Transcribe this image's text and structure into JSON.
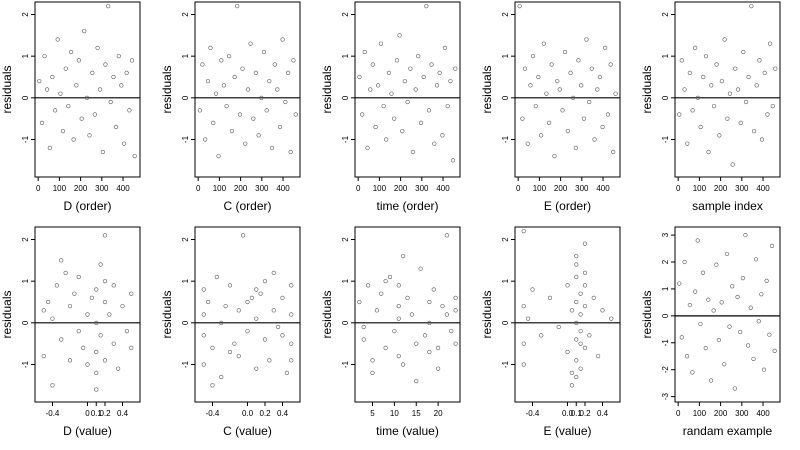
{
  "figure": {
    "background": "#ffffff",
    "point_color": "#555555",
    "line_color": "#000000"
  },
  "chart_data": [
    {
      "type": "scatter",
      "xlabel": "D (order)",
      "ylabel": "residuals",
      "xlim": [
        -15,
        480
      ],
      "ylim": [
        -1.9,
        2.3
      ],
      "xticks": [
        {
          "v": 0,
          "l": "0"
        },
        {
          "v": 100,
          "l": "100"
        },
        {
          "v": 200,
          "l": "200"
        },
        {
          "v": 300,
          "l": "300"
        },
        {
          "v": 400,
          "l": "400"
        }
      ],
      "yticks": [
        {
          "v": -1,
          "l": "-1"
        },
        {
          "v": 0,
          "l": "0"
        },
        {
          "v": 1,
          "l": "1"
        },
        {
          "v": 2,
          "l": "2"
        }
      ],
      "hline": 0,
      "x": [
        5,
        18,
        30,
        42,
        55,
        67,
        80,
        92,
        105,
        117,
        130,
        142,
        155,
        167,
        180,
        192,
        205,
        217,
        230,
        242,
        255,
        267,
        280,
        292,
        305,
        317,
        330,
        342,
        355,
        367,
        380,
        392,
        405,
        417,
        430,
        442,
        455
      ],
      "y": [
        0.4,
        -0.6,
        1.0,
        0.2,
        -1.2,
        0.5,
        -0.3,
        1.4,
        0.1,
        -0.8,
        0.7,
        -0.2,
        1.1,
        -1.0,
        0.3,
        0.9,
        -0.5,
        1.6,
        0.0,
        -0.9,
        0.6,
        -0.4,
        1.2,
        0.2,
        -1.3,
        0.8,
        2.2,
        -0.1,
        0.5,
        -0.7,
        1.0,
        0.3,
        -1.1,
        0.6,
        -0.3,
        0.9,
        -1.4
      ]
    },
    {
      "type": "scatter",
      "xlabel": "C (order)",
      "ylabel": "residuals",
      "xlim": [
        -15,
        480
      ],
      "ylim": [
        -1.9,
        2.3
      ],
      "xticks": [
        {
          "v": 0,
          "l": "0"
        },
        {
          "v": 100,
          "l": "100"
        },
        {
          "v": 200,
          "l": "200"
        },
        {
          "v": 300,
          "l": "300"
        },
        {
          "v": 400,
          "l": "400"
        }
      ],
      "yticks": [
        {
          "v": -1,
          "l": "-1"
        },
        {
          "v": 0,
          "l": "0"
        },
        {
          "v": 1,
          "l": "1"
        },
        {
          "v": 2,
          "l": "2"
        }
      ],
      "hline": 0,
      "x": [
        8,
        20,
        33,
        46,
        58,
        71,
        84,
        96,
        109,
        121,
        134,
        146,
        159,
        172,
        184,
        197,
        209,
        222,
        235,
        247,
        260,
        272,
        285,
        298,
        310,
        323,
        335,
        348,
        361,
        373,
        386,
        398,
        411,
        424,
        436,
        449,
        460
      ],
      "y": [
        -0.3,
        0.8,
        -1.0,
        0.4,
        1.2,
        -0.6,
        0.1,
        -1.4,
        0.9,
        0.3,
        -0.2,
        1.0,
        -0.8,
        0.5,
        2.2,
        -0.4,
        0.7,
        -1.1,
        0.2,
        1.3,
        -0.5,
        0.6,
        -0.9,
        0.0,
        1.1,
        -0.3,
        0.4,
        -1.2,
        0.8,
        0.2,
        -0.7,
        1.4,
        -0.1,
        0.6,
        -1.3,
        0.9,
        -0.4
      ]
    },
    {
      "type": "scatter",
      "xlabel": "time (order)",
      "ylabel": "residuals",
      "xlim": [
        -15,
        480
      ],
      "ylim": [
        -1.9,
        2.3
      ],
      "xticks": [
        {
          "v": 0,
          "l": "0"
        },
        {
          "v": 100,
          "l": "100"
        },
        {
          "v": 200,
          "l": "200"
        },
        {
          "v": 300,
          "l": "300"
        },
        {
          "v": 400,
          "l": "400"
        }
      ],
      "yticks": [
        {
          "v": -1,
          "l": "-1"
        },
        {
          "v": 0,
          "l": "0"
        },
        {
          "v": 1,
          "l": "1"
        },
        {
          "v": 2,
          "l": "2"
        }
      ],
      "hline": 0,
      "x": [
        6,
        19,
        31,
        44,
        57,
        69,
        82,
        94,
        107,
        120,
        132,
        145,
        157,
        170,
        183,
        195,
        208,
        220,
        233,
        246,
        258,
        271,
        283,
        296,
        309,
        321,
        334,
        346,
        359,
        372,
        384,
        397,
        409,
        422,
        435,
        447,
        458
      ],
      "y": [
        0.5,
        -0.4,
        1.1,
        -1.2,
        0.2,
        0.8,
        -0.7,
        0.3,
        1.3,
        -0.2,
        -1.0,
        0.6,
        0.1,
        -0.5,
        0.9,
        1.5,
        -0.8,
        0.4,
        -0.1,
        0.7,
        -1.3,
        0.2,
        1.0,
        -0.6,
        0.5,
        2.2,
        -0.3,
        0.8,
        -1.1,
        0.3,
        0.6,
        -0.9,
        1.2,
        -0.2,
        0.4,
        -1.5,
        0.7
      ]
    },
    {
      "type": "scatter",
      "xlabel": "E (order)",
      "ylabel": "residuals",
      "xlim": [
        -15,
        480
      ],
      "ylim": [
        -1.9,
        2.3
      ],
      "xticks": [
        {
          "v": 0,
          "l": "0"
        },
        {
          "v": 100,
          "l": "100"
        },
        {
          "v": 200,
          "l": "200"
        },
        {
          "v": 300,
          "l": "300"
        },
        {
          "v": 400,
          "l": "400"
        }
      ],
      "yticks": [
        {
          "v": -1,
          "l": "-1"
        },
        {
          "v": 0,
          "l": "0"
        },
        {
          "v": 1,
          "l": "1"
        },
        {
          "v": 2,
          "l": "2"
        }
      ],
      "hline": 0,
      "x": [
        7,
        20,
        32,
        45,
        58,
        70,
        83,
        95,
        108,
        121,
        133,
        146,
        158,
        171,
        184,
        196,
        209,
        221,
        234,
        247,
        259,
        272,
        284,
        297,
        310,
        322,
        335,
        347,
        360,
        373,
        385,
        398,
        410,
        423,
        436,
        448,
        459
      ],
      "y": [
        2.2,
        -0.5,
        0.7,
        -1.1,
        0.3,
        1.0,
        -0.2,
        0.5,
        -0.9,
        1.3,
        0.1,
        -0.6,
        0.8,
        -1.4,
        0.4,
        0.2,
        -0.3,
        1.1,
        -0.8,
        0.6,
        0.0,
        -1.2,
        0.9,
        0.3,
        -0.5,
        1.4,
        -0.1,
        0.7,
        -1.0,
        0.2,
        0.5,
        -0.7,
        1.2,
        -0.4,
        0.8,
        -1.3,
        0.1
      ]
    },
    {
      "type": "scatter",
      "xlabel": "sample index",
      "ylabel": "residuals",
      "xlim": [
        -15,
        480
      ],
      "ylim": [
        -1.9,
        2.3
      ],
      "xticks": [
        {
          "v": 0,
          "l": "0"
        },
        {
          "v": 100,
          "l": "100"
        },
        {
          "v": 200,
          "l": "200"
        },
        {
          "v": 300,
          "l": "300"
        },
        {
          "v": 400,
          "l": "400"
        }
      ],
      "yticks": [
        {
          "v": -1,
          "l": "-1"
        },
        {
          "v": 0,
          "l": "0"
        },
        {
          "v": 1,
          "l": "1"
        },
        {
          "v": 2,
          "l": "2"
        }
      ],
      "hline": 0,
      "x": [
        5,
        17,
        30,
        43,
        55,
        68,
        80,
        93,
        106,
        118,
        131,
        143,
        156,
        169,
        181,
        194,
        206,
        219,
        232,
        244,
        257,
        269,
        282,
        295,
        307,
        320,
        332,
        345,
        358,
        370,
        383,
        395,
        408,
        421,
        433,
        446,
        458
      ],
      "y": [
        -0.4,
        0.9,
        0.2,
        -1.1,
        0.6,
        -0.3,
        1.2,
        0.0,
        -0.7,
        0.5,
        1.0,
        -1.3,
        0.3,
        -0.2,
        0.8,
        -0.9,
        0.4,
        1.4,
        -0.5,
        0.1,
        -1.6,
        0.7,
        0.2,
        -0.6,
        1.1,
        -0.1,
        0.5,
        2.2,
        -0.8,
        0.3,
        0.9,
        -1.0,
        0.6,
        -0.4,
        1.3,
        -0.2,
        0.7
      ]
    },
    {
      "type": "scatter",
      "xlabel": "D (value)",
      "ylabel": "residuals",
      "xlim": [
        -0.6,
        0.6
      ],
      "ylim": [
        -1.9,
        2.3
      ],
      "xticks": [
        {
          "v": -0.4,
          "l": "-0.4"
        },
        {
          "v": 0,
          "l": "0"
        },
        {
          "v": 0.1,
          "l": "0.1"
        },
        {
          "v": 0.2,
          "l": "0.2"
        },
        {
          "v": 0.4,
          "l": "0.4"
        }
      ],
      "yticks": [
        {
          "v": -1,
          "l": "-1"
        },
        {
          "v": 0,
          "l": "0"
        },
        {
          "v": 1,
          "l": "1"
        },
        {
          "v": 2,
          "l": "2"
        }
      ],
      "hline": 0,
      "x": [
        -0.5,
        -0.5,
        -0.45,
        -0.4,
        -0.4,
        -0.35,
        -0.3,
        -0.25,
        -0.2,
        -0.2,
        -0.15,
        -0.1,
        -0.1,
        -0.05,
        0.0,
        0.0,
        0.05,
        0.1,
        0.1,
        0.1,
        0.1,
        0.15,
        0.15,
        0.2,
        0.2,
        0.2,
        0.25,
        0.3,
        0.3,
        0.35,
        0.4,
        0.45,
        0.5,
        0.5,
        -0.3,
        0.1,
        0.2
      ],
      "y": [
        0.3,
        -0.8,
        0.5,
        -1.5,
        0.1,
        0.9,
        -0.4,
        1.2,
        0.4,
        -0.9,
        0.7,
        -0.2,
        1.1,
        -0.6,
        0.2,
        -1.0,
        0.6,
        0.0,
        -0.7,
        0.8,
        -1.2,
        1.4,
        -0.3,
        0.5,
        -0.9,
        2.1,
        0.2,
        -0.5,
        0.9,
        -1.1,
        0.4,
        -0.2,
        0.7,
        -0.6,
        1.5,
        -1.6,
        1.0
      ]
    },
    {
      "type": "scatter",
      "xlabel": "C (value)",
      "ylabel": "residuals",
      "xlim": [
        -0.6,
        0.6
      ],
      "ylim": [
        -1.9,
        2.3
      ],
      "xticks": [
        {
          "v": -0.4,
          "l": "-0.4"
        },
        {
          "v": 0,
          "l": "0.0"
        },
        {
          "v": 0.2,
          "l": "0.2"
        },
        {
          "v": 0.4,
          "l": "0.4"
        }
      ],
      "yticks": [
        {
          "v": -1,
          "l": "-1"
        },
        {
          "v": 0,
          "l": "0"
        },
        {
          "v": 1,
          "l": "1"
        },
        {
          "v": 2,
          "l": "2"
        }
      ],
      "hline": 0,
      "x": [
        -0.5,
        -0.5,
        -0.5,
        -0.5,
        -0.45,
        -0.4,
        -0.35,
        -0.3,
        -0.3,
        -0.25,
        -0.2,
        -0.15,
        -0.1,
        -0.1,
        -0.05,
        0.0,
        0.05,
        0.1,
        0.1,
        0.15,
        0.2,
        0.2,
        0.25,
        0.3,
        0.35,
        0.4,
        0.45,
        0.5,
        0.5,
        0.5,
        0.5,
        -0.2,
        0.0,
        0.3,
        -0.4,
        0.4,
        0.1
      ],
      "y": [
        0.8,
        -0.3,
        0.2,
        -1.0,
        0.5,
        -0.6,
        1.1,
        0.0,
        -1.3,
        0.4,
        0.9,
        -0.5,
        0.3,
        -0.8,
        2.1,
        -0.2,
        0.6,
        -1.1,
        0.1,
        0.7,
        -0.4,
        1.0,
        -0.9,
        0.3,
        -0.1,
        0.6,
        -1.2,
        0.9,
        -0.5,
        0.2,
        -0.9,
        -0.7,
        0.5,
        1.2,
        -1.5,
        -0.3,
        0.8
      ]
    },
    {
      "type": "scatter",
      "xlabel": "time (value)",
      "ylabel": "residuals",
      "xlim": [
        1,
        25
      ],
      "ylim": [
        -1.9,
        2.3
      ],
      "xticks": [
        {
          "v": 5,
          "l": "5"
        },
        {
          "v": 10,
          "l": "10"
        },
        {
          "v": 15,
          "l": "15"
        },
        {
          "v": 20,
          "l": "20"
        }
      ],
      "yticks": [
        {
          "v": -1,
          "l": "-1"
        },
        {
          "v": 0,
          "l": "0"
        },
        {
          "v": 1,
          "l": "1"
        },
        {
          "v": 2,
          "l": "2"
        }
      ],
      "hline": 0,
      "x": [
        2,
        3,
        4,
        5,
        6,
        7,
        8,
        9,
        10,
        11,
        11,
        11,
        11,
        12,
        13,
        14,
        15,
        16,
        17,
        18,
        18,
        18,
        19,
        20,
        21,
        22,
        23,
        24,
        24,
        24,
        5,
        8,
        15,
        12,
        20,
        22,
        3
      ],
      "y": [
        0.5,
        -0.4,
        0.9,
        -1.2,
        0.3,
        0.7,
        -0.6,
        1.1,
        -0.2,
        0.4,
        -0.8,
        0.1,
        0.9,
        -1.0,
        0.6,
        0.2,
        -0.5,
        1.3,
        -0.3,
        0.5,
        -0.7,
        0.0,
        0.8,
        -1.1,
        0.4,
        2.1,
        -0.2,
        0.6,
        -0.5,
        0.3,
        -0.9,
        1.0,
        -1.4,
        1.6,
        -0.6,
        0.2,
        -0.1
      ]
    },
    {
      "type": "scatter",
      "xlabel": "E (value)",
      "ylabel": "residuals",
      "xlim": [
        -0.6,
        0.6
      ],
      "ylim": [
        -1.9,
        2.3
      ],
      "xticks": [
        {
          "v": -0.4,
          "l": "-0.4"
        },
        {
          "v": 0,
          "l": "0.0"
        },
        {
          "v": 0.1,
          "l": "0.1"
        },
        {
          "v": 0.2,
          "l": "0.2"
        },
        {
          "v": 0.4,
          "l": "0.4"
        }
      ],
      "yticks": [
        {
          "v": -1,
          "l": "-1"
        },
        {
          "v": 0,
          "l": "0"
        },
        {
          "v": 1,
          "l": "1"
        },
        {
          "v": 2,
          "l": "2"
        }
      ],
      "hline": 0,
      "x": [
        -0.5,
        -0.5,
        -0.5,
        -0.5,
        -0.4,
        -0.3,
        -0.2,
        -0.1,
        0.0,
        0.0,
        0.05,
        0.05,
        0.1,
        0.1,
        0.1,
        0.1,
        0.1,
        0.1,
        0.15,
        0.15,
        0.15,
        0.15,
        0.2,
        0.2,
        0.2,
        0.2,
        0.25,
        0.3,
        0.35,
        0.4,
        0.5,
        0.1,
        0.05,
        0.15,
        -0.45,
        0.2,
        0.1
      ],
      "y": [
        2.2,
        0.4,
        -0.5,
        -1.0,
        0.8,
        -0.3,
        0.6,
        -0.1,
        0.9,
        -0.7,
        0.3,
        -1.2,
        1.4,
        0.5,
        -0.4,
        0.0,
        -0.9,
        1.1,
        0.7,
        -0.2,
        -1.1,
        0.2,
        0.9,
        -0.6,
        0.4,
        1.2,
        -0.3,
        0.6,
        -0.8,
        0.3,
        0.1,
        1.6,
        -1.5,
        -0.5,
        0.1,
        1.9,
        -1.3
      ]
    },
    {
      "type": "scatter",
      "xlabel": "randam example",
      "ylabel": "residuals",
      "xlim": [
        -15,
        480
      ],
      "ylim": [
        -3.2,
        3.3
      ],
      "xticks": [
        {
          "v": 0,
          "l": "0"
        },
        {
          "v": 100,
          "l": "100"
        },
        {
          "v": 200,
          "l": "200"
        },
        {
          "v": 300,
          "l": "300"
        },
        {
          "v": 400,
          "l": "400"
        }
      ],
      "yticks": [
        {
          "v": -3,
          "l": "-3"
        },
        {
          "v": -2,
          "l": "-2"
        },
        {
          "v": -1,
          "l": "-1"
        },
        {
          "v": 0,
          "l": "0"
        },
        {
          "v": 1,
          "l": "1"
        },
        {
          "v": 2,
          "l": "2"
        },
        {
          "v": 3,
          "l": "3"
        }
      ],
      "hline": 0,
      "x": [
        5,
        17,
        30,
        42,
        55,
        67,
        80,
        92,
        105,
        117,
        130,
        142,
        155,
        167,
        180,
        192,
        205,
        217,
        230,
        242,
        255,
        267,
        280,
        292,
        305,
        317,
        330,
        342,
        355,
        367,
        380,
        392,
        405,
        417,
        430,
        442,
        455
      ],
      "y": [
        1.2,
        -0.8,
        2.0,
        -1.5,
        0.4,
        -2.1,
        0.9,
        2.8,
        -0.3,
        1.6,
        -1.2,
        0.6,
        -2.4,
        0.2,
        1.9,
        -0.9,
        0.5,
        -1.8,
        2.3,
        -0.4,
        1.1,
        -2.7,
        0.7,
        -0.6,
        1.4,
        3.0,
        -1.1,
        0.3,
        -1.6,
        2.1,
        -0.2,
        0.8,
        -2.0,
        1.3,
        -0.7,
        2.6,
        -1.3
      ]
    }
  ]
}
